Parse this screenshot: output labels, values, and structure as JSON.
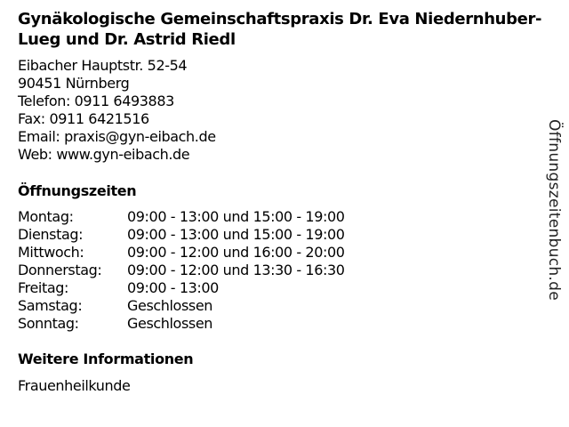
{
  "title": "Gynäkologische Gemeinschaftspraxis Dr. Eva Niedernhuber-Lueg und Dr. Astrid Riedl",
  "address": {
    "street": "Eibacher Hauptstr. 52-54",
    "city": "90451 Nürnberg",
    "phone": "Telefon: 0911 6493883",
    "fax": "Fax: 0911 6421516",
    "email": "Email: praxis@gyn-eibach.de",
    "web": "Web: www.gyn-eibach.de"
  },
  "hours_heading": "Öffnungszeiten",
  "hours": [
    {
      "day": "Montag:",
      "time": "09:00 - 13:00 und 15:00 - 19:00"
    },
    {
      "day": "Dienstag:",
      "time": "09:00 - 13:00 und 15:00 - 19:00"
    },
    {
      "day": "Mittwoch:",
      "time": "09:00 - 12:00 und 16:00 - 20:00"
    },
    {
      "day": "Donnerstag:",
      "time": "09:00 - 12:00 und 13:30 - 16:30"
    },
    {
      "day": "Freitag:",
      "time": "09:00 - 13:00"
    },
    {
      "day": "Samstag:",
      "time": "Geschlossen"
    },
    {
      "day": "Sonntag:",
      "time": "Geschlossen"
    }
  ],
  "info_heading": "Weitere Informationen",
  "info_text": "Frauenheilkunde",
  "watermark": "Öffnungszeitenbuch.de"
}
